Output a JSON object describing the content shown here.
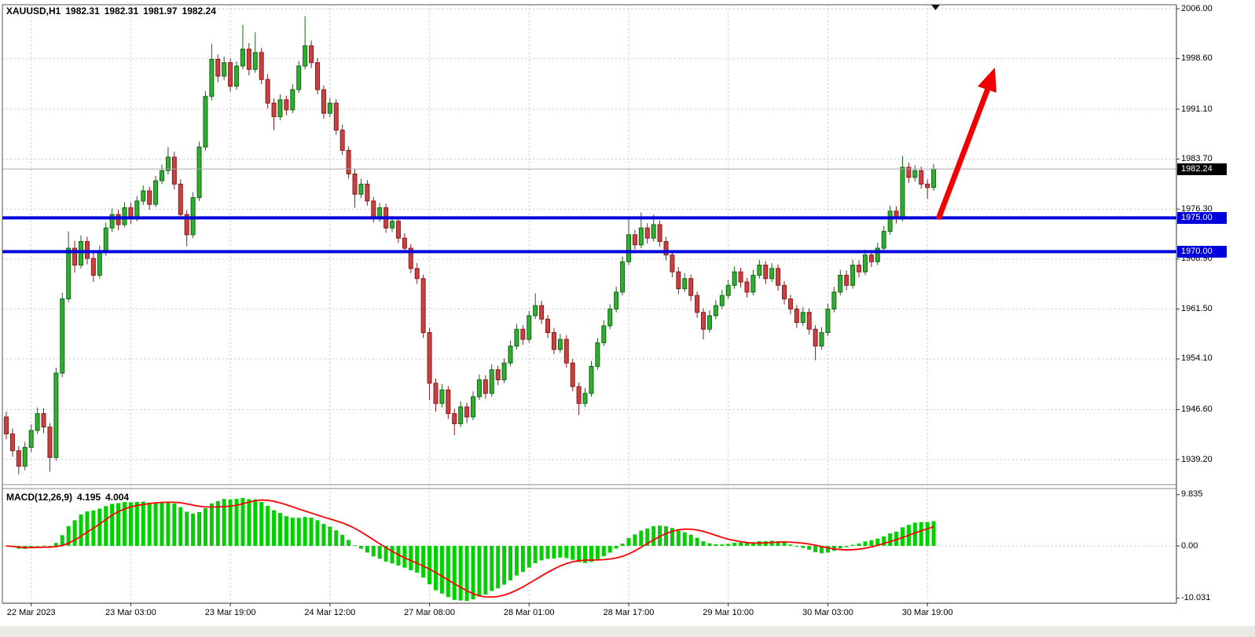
{
  "header": {
    "symbol_period": "XAUUSD,H1",
    "open": "1982.31",
    "high": "1982.31",
    "low": "1981.97",
    "close": "1982.24"
  },
  "price_axis": {
    "tick_labels": [
      "2006.00",
      "1998.60",
      "1991.10",
      "1983.70",
      "1976.30",
      "1968.90",
      "1961.50",
      "1954.10",
      "1946.60",
      "1939.20"
    ],
    "tick_values": [
      2006.0,
      1998.6,
      1991.1,
      1983.7,
      1976.3,
      1968.9,
      1961.5,
      1954.1,
      1946.6,
      1939.2
    ]
  },
  "time_axis": {
    "tick_labels": [
      "22 Mar 2023",
      "23 Mar 03:00",
      "23 Mar 19:00",
      "24 Mar 12:00",
      "27 Mar 08:00",
      "28 Mar 01:00",
      "28 Mar 17:00",
      "29 Mar 10:00",
      "30 Mar 03:00",
      "30 Mar 19:00"
    ],
    "tick_candle_indices": [
      4,
      20,
      36,
      52,
      68,
      84,
      100,
      116,
      132,
      148
    ]
  },
  "levels": {
    "resistance": {
      "value": 1975.0,
      "label": "1975.00",
      "color": "#0000dd"
    },
    "support": {
      "value": 1970.0,
      "label": "1970.00",
      "color": "#0000dd"
    },
    "current_price": {
      "value": 1982.24,
      "label": "1982.24",
      "line_color": "#a8a8a8",
      "tag_bg": "#000000"
    }
  },
  "annotation": {
    "trend_arrow_color": "#f00000"
  },
  "macd": {
    "label": "MACD(12,26,9)",
    "main_value": "4.195",
    "signal_value": "4.004",
    "axis_labels": [
      "9.835",
      "0.00",
      "-10.031"
    ],
    "axis_values": [
      9.835,
      0.0,
      -10.031
    ],
    "histogram_color": "#00cf00",
    "signal_color": "#ff0000",
    "params": {
      "fast": 12,
      "slow": 26,
      "signal": 9
    }
  },
  "chart_data": {
    "type": "candlestick",
    "symbol": "XAUUSD",
    "timeframe": "H1",
    "title": "XAUUSD,H1 1982.31 1982.31 1981.97 1982.24",
    "ylim": [
      1939.2,
      2006.0
    ],
    "indicator": {
      "type": "MACD",
      "last": 4.195,
      "signal_last": 4.004,
      "ylim": [
        -10.031,
        9.835
      ]
    },
    "grid_color": "#c9c9c9",
    "bull_color": "#2fae2f",
    "bull_border": "#156615",
    "bear_color": "#c94141",
    "bear_border": "#8c1a1a",
    "x_tick_labels": [
      "22 Mar 2023",
      "23 Mar 03:00",
      "23 Mar 19:00",
      "24 Mar 12:00",
      "27 Mar 08:00",
      "28 Mar 01:00",
      "28 Mar 17:00",
      "29 Mar 10:00",
      "30 Mar 03:00",
      "30 Mar 19:00"
    ],
    "candles": [
      [
        1945.5,
        1946.3,
        1942.2,
        1943.0
      ],
      [
        1943.0,
        1943.8,
        1939.6,
        1940.5
      ],
      [
        1940.5,
        1941.2,
        1937.0,
        1938.2
      ],
      [
        1938.2,
        1941.8,
        1937.6,
        1941.0
      ],
      [
        1941.0,
        1944.4,
        1940.3,
        1943.5
      ],
      [
        1943.5,
        1946.9,
        1943.0,
        1946.0
      ],
      [
        1946.0,
        1946.8,
        1943.1,
        1944.0
      ],
      [
        1944.0,
        1944.6,
        1937.4,
        1939.5
      ],
      [
        1939.5,
        1952.8,
        1939.0,
        1952.0
      ],
      [
        1952.0,
        1963.9,
        1951.4,
        1963.0
      ],
      [
        1963.0,
        1973.0,
        1962.5,
        1970.5
      ],
      [
        1970.5,
        1971.6,
        1966.9,
        1968.0
      ],
      [
        1968.0,
        1972.4,
        1967.5,
        1971.5
      ],
      [
        1971.5,
        1972.2,
        1968.1,
        1969.0
      ],
      [
        1969.0,
        1969.8,
        1965.5,
        1966.5
      ],
      [
        1966.5,
        1970.9,
        1966.0,
        1970.0
      ],
      [
        1970.0,
        1974.3,
        1969.4,
        1973.5
      ],
      [
        1973.5,
        1976.4,
        1972.9,
        1975.5
      ],
      [
        1975.5,
        1976.2,
        1973.2,
        1974.0
      ],
      [
        1974.0,
        1977.3,
        1973.6,
        1976.5
      ],
      [
        1976.5,
        1977.2,
        1974.1,
        1975.0
      ],
      [
        1975.0,
        1978.2,
        1974.5,
        1977.5
      ],
      [
        1977.5,
        1979.8,
        1976.9,
        1979.0
      ],
      [
        1979.0,
        1979.6,
        1976.2,
        1977.0
      ],
      [
        1977.0,
        1981.2,
        1976.6,
        1980.5
      ],
      [
        1980.5,
        1982.9,
        1980.0,
        1982.0
      ],
      [
        1982.0,
        1985.5,
        1981.4,
        1984.0
      ],
      [
        1984.0,
        1984.8,
        1979.2,
        1980.0
      ],
      [
        1980.0,
        1980.7,
        1974.8,
        1975.5
      ],
      [
        1975.5,
        1976.1,
        1970.8,
        1972.5
      ],
      [
        1972.5,
        1978.8,
        1972.0,
        1978.0
      ],
      [
        1978.0,
        1986.3,
        1977.5,
        1985.5
      ],
      [
        1985.5,
        1993.8,
        1985.0,
        1993.0
      ],
      [
        1993.0,
        2000.8,
        1992.4,
        1998.5
      ],
      [
        1998.5,
        1999.2,
        1995.1,
        1996.0
      ],
      [
        1996.0,
        1998.9,
        1995.4,
        1998.0
      ],
      [
        1998.0,
        1998.6,
        1993.7,
        1994.5
      ],
      [
        1994.5,
        1998.2,
        1994.0,
        1997.5
      ],
      [
        1997.5,
        2003.6,
        1997.0,
        2000.0
      ],
      [
        2000.0,
        2000.9,
        1996.1,
        1997.0
      ],
      [
        1997.0,
        2002.5,
        1996.5,
        1999.5
      ],
      [
        1999.5,
        2000.2,
        1994.8,
        1995.5
      ],
      [
        1995.5,
        1996.3,
        1991.2,
        1992.0
      ],
      [
        1992.0,
        1992.7,
        1988.0,
        1990.0
      ],
      [
        1990.0,
        1993.3,
        1989.5,
        1992.5
      ],
      [
        1992.5,
        1993.1,
        1990.2,
        1991.0
      ],
      [
        1991.0,
        1994.8,
        1990.5,
        1994.0
      ],
      [
        1994.0,
        1998.2,
        1993.5,
        1997.5
      ],
      [
        1997.5,
        2004.9,
        1997.0,
        2000.5
      ],
      [
        2000.5,
        2001.3,
        1997.2,
        1998.0
      ],
      [
        1998.0,
        1998.7,
        1993.3,
        1994.0
      ],
      [
        1994.0,
        1994.6,
        1989.7,
        1990.5
      ],
      [
        1990.5,
        1992.8,
        1989.9,
        1992.0
      ],
      [
        1992.0,
        1992.6,
        1987.3,
        1988.0
      ],
      [
        1988.0,
        1988.8,
        1984.3,
        1985.0
      ],
      [
        1985.0,
        1985.6,
        1980.8,
        1981.5
      ],
      [
        1981.5,
        1982.2,
        1976.5,
        1978.5
      ],
      [
        1978.5,
        1980.8,
        1977.9,
        1980.0
      ],
      [
        1980.0,
        1980.6,
        1976.8,
        1977.5
      ],
      [
        1977.5,
        1978.1,
        1974.3,
        1975.0
      ],
      [
        1975.0,
        1977.2,
        1974.4,
        1976.5
      ],
      [
        1976.5,
        1977.1,
        1972.8,
        1973.5
      ],
      [
        1973.5,
        1975.3,
        1972.9,
        1974.5
      ],
      [
        1974.5,
        1975.1,
        1971.3,
        1972.0
      ],
      [
        1972.0,
        1972.7,
        1969.8,
        1970.5
      ],
      [
        1970.5,
        1971.1,
        1966.8,
        1967.5
      ],
      [
        1967.5,
        1968.3,
        1965.2,
        1966.0
      ],
      [
        1966.0,
        1966.6,
        1957.2,
        1958.0
      ],
      [
        1958.0,
        1958.7,
        1948.0,
        1950.5
      ],
      [
        1950.5,
        1951.2,
        1946.3,
        1947.5
      ],
      [
        1947.5,
        1950.4,
        1946.9,
        1949.5
      ],
      [
        1949.5,
        1950.1,
        1945.2,
        1946.0
      ],
      [
        1946.0,
        1946.7,
        1942.8,
        1944.5
      ],
      [
        1944.5,
        1947.8,
        1944.0,
        1947.0
      ],
      [
        1947.0,
        1947.6,
        1944.6,
        1945.5
      ],
      [
        1945.5,
        1949.3,
        1945.0,
        1948.5
      ],
      [
        1948.5,
        1951.8,
        1948.0,
        1951.0
      ],
      [
        1951.0,
        1951.7,
        1948.2,
        1949.0
      ],
      [
        1949.0,
        1953.3,
        1948.5,
        1952.5
      ],
      [
        1952.5,
        1953.1,
        1950.2,
        1951.0
      ],
      [
        1951.0,
        1954.2,
        1950.5,
        1953.5
      ],
      [
        1953.5,
        1956.8,
        1953.0,
        1956.0
      ],
      [
        1956.0,
        1959.3,
        1955.5,
        1958.5
      ],
      [
        1958.5,
        1959.1,
        1956.2,
        1957.0
      ],
      [
        1957.0,
        1961.2,
        1956.5,
        1960.5
      ],
      [
        1960.5,
        1963.8,
        1960.0,
        1962.0
      ],
      [
        1962.0,
        1962.7,
        1959.3,
        1960.0
      ],
      [
        1960.0,
        1960.6,
        1957.2,
        1958.0
      ],
      [
        1958.0,
        1958.7,
        1954.8,
        1955.5
      ],
      [
        1955.5,
        1957.8,
        1955.0,
        1957.0
      ],
      [
        1957.0,
        1957.6,
        1952.8,
        1953.5
      ],
      [
        1953.5,
        1954.1,
        1949.3,
        1950.0
      ],
      [
        1950.0,
        1950.6,
        1945.8,
        1947.5
      ],
      [
        1947.5,
        1949.8,
        1947.0,
        1949.0
      ],
      [
        1949.0,
        1953.8,
        1948.5,
        1953.0
      ],
      [
        1953.0,
        1957.2,
        1952.5,
        1956.5
      ],
      [
        1956.5,
        1959.8,
        1956.0,
        1959.0
      ],
      [
        1959.0,
        1962.2,
        1958.5,
        1961.5
      ],
      [
        1961.5,
        1964.8,
        1961.0,
        1964.0
      ],
      [
        1964.0,
        1969.3,
        1963.5,
        1968.5
      ],
      [
        1968.5,
        1975.2,
        1968.0,
        1972.5
      ],
      [
        1972.5,
        1973.2,
        1970.3,
        1971.0
      ],
      [
        1971.0,
        1975.8,
        1970.5,
        1973.5
      ],
      [
        1973.5,
        1974.2,
        1971.2,
        1972.0
      ],
      [
        1972.0,
        1975.5,
        1971.5,
        1974.0
      ],
      [
        1974.0,
        1974.6,
        1970.7,
        1971.5
      ],
      [
        1971.5,
        1972.2,
        1968.7,
        1969.5
      ],
      [
        1969.5,
        1970.1,
        1966.2,
        1967.0
      ],
      [
        1967.0,
        1967.7,
        1963.7,
        1964.5
      ],
      [
        1964.5,
        1966.8,
        1964.0,
        1966.0
      ],
      [
        1966.0,
        1966.6,
        1962.7,
        1963.5
      ],
      [
        1963.5,
        1964.1,
        1960.2,
        1961.0
      ],
      [
        1961.0,
        1961.6,
        1957.0,
        1958.5
      ],
      [
        1958.5,
        1961.3,
        1958.0,
        1960.5
      ],
      [
        1960.5,
        1962.8,
        1960.0,
        1962.0
      ],
      [
        1962.0,
        1964.3,
        1961.5,
        1963.5
      ],
      [
        1963.5,
        1965.8,
        1963.0,
        1965.0
      ],
      [
        1965.0,
        1967.8,
        1964.5,
        1967.0
      ],
      [
        1967.0,
        1967.6,
        1964.7,
        1965.5
      ],
      [
        1965.5,
        1966.1,
        1963.2,
        1964.0
      ],
      [
        1964.0,
        1967.3,
        1963.5,
        1966.5
      ],
      [
        1966.5,
        1968.8,
        1966.0,
        1968.0
      ],
      [
        1968.0,
        1968.6,
        1965.2,
        1966.0
      ],
      [
        1966.0,
        1968.3,
        1965.5,
        1967.5
      ],
      [
        1967.5,
        1968.1,
        1964.2,
        1965.0
      ],
      [
        1965.0,
        1965.6,
        1962.2,
        1963.0
      ],
      [
        1963.0,
        1963.6,
        1960.7,
        1961.5
      ],
      [
        1961.5,
        1962.1,
        1958.7,
        1959.5
      ],
      [
        1959.5,
        1961.8,
        1959.0,
        1961.0
      ],
      [
        1961.0,
        1961.6,
        1957.7,
        1958.5
      ],
      [
        1958.5,
        1959.1,
        1953.9,
        1956.0
      ],
      [
        1956.0,
        1958.8,
        1955.5,
        1958.0
      ],
      [
        1958.0,
        1962.3,
        1957.5,
        1961.5
      ],
      [
        1961.5,
        1964.8,
        1961.0,
        1964.0
      ],
      [
        1964.0,
        1967.3,
        1963.5,
        1966.5
      ],
      [
        1966.5,
        1967.2,
        1964.3,
        1965.0
      ],
      [
        1965.0,
        1968.8,
        1964.5,
        1968.0
      ],
      [
        1968.0,
        1968.7,
        1966.2,
        1967.0
      ],
      [
        1967.0,
        1970.3,
        1966.5,
        1969.5
      ],
      [
        1969.5,
        1970.1,
        1967.7,
        1968.5
      ],
      [
        1968.5,
        1971.3,
        1968.0,
        1970.5
      ],
      [
        1970.5,
        1973.8,
        1970.0,
        1973.0
      ],
      [
        1973.0,
        1976.8,
        1972.5,
        1976.0
      ],
      [
        1976.0,
        1976.7,
        1974.2,
        1975.0
      ],
      [
        1975.0,
        1984.2,
        1974.5,
        1982.5
      ],
      [
        1982.5,
        1983.2,
        1980.2,
        1981.0
      ],
      [
        1981.0,
        1982.8,
        1980.4,
        1982.0
      ],
      [
        1982.0,
        1982.6,
        1979.3,
        1980.0
      ],
      [
        1980.0,
        1980.7,
        1977.8,
        1979.5
      ],
      [
        1979.5,
        1983.0,
        1979.0,
        1982.24
      ]
    ]
  }
}
